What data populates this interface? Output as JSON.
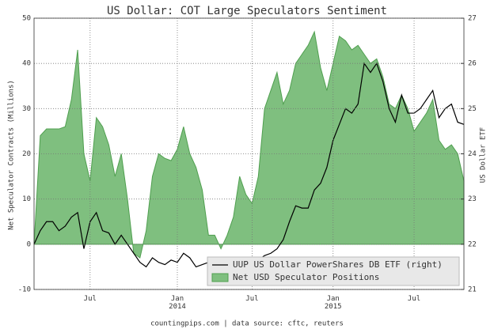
{
  "chart_data": {
    "type": "area_line",
    "title": "US Dollar: COT Large Speculators Sentiment",
    "ylabel": "Net Speculator Contracts (Millions)",
    "y2label": "US Dollar ETF",
    "footer": "countingpips.com | data source: cftc, reuters",
    "categories": [
      null,
      null,
      null,
      null,
      null,
      null,
      null,
      null,
      null,
      "Jul",
      null,
      null,
      null,
      null,
      null,
      null,
      null,
      null,
      null,
      null,
      null,
      null,
      null,
      "Jan\n2014",
      null,
      null,
      null,
      null,
      null,
      null,
      null,
      null,
      null,
      null,
      null,
      "Jul",
      null,
      null,
      null,
      null,
      null,
      null,
      null,
      null,
      null,
      null,
      null,
      null,
      "Jan\n2015",
      null,
      null,
      null,
      null,
      null,
      null,
      null,
      null,
      null,
      null,
      null,
      null,
      "Jul",
      null,
      null,
      null,
      null,
      null,
      null,
      null,
      null
    ],
    "series": [
      {
        "name": "Net USD Speculator Positions",
        "kind": "area",
        "color": "#7fbf7f",
        "edge": "#4f9f4f",
        "values": [
          0,
          24,
          25.5,
          25.5,
          25.5,
          26,
          32,
          43,
          20,
          14,
          28,
          26,
          22,
          15,
          20,
          10,
          -2,
          -3,
          3,
          15,
          20,
          19,
          18.5,
          21,
          26,
          20,
          17,
          12,
          2,
          2,
          -1,
          2,
          6,
          15,
          11,
          9,
          15,
          30,
          34,
          38,
          31,
          34,
          40,
          42,
          44,
          47,
          39,
          34,
          40,
          46,
          45,
          43,
          44,
          42,
          40,
          41,
          37,
          31,
          30,
          33,
          30,
          25,
          27,
          29,
          32,
          23,
          21,
          22,
          20,
          14
        ]
      },
      {
        "name": "UUP US Dollar PowerShares DB ETF (right)",
        "kind": "line",
        "axis": "y2",
        "color": "#000000",
        "values": [
          22.0,
          22.3,
          22.5,
          22.5,
          22.3,
          22.4,
          22.6,
          22.7,
          21.9,
          22.5,
          22.7,
          22.3,
          22.25,
          22.0,
          22.2,
          22.0,
          21.8,
          21.6,
          21.5,
          21.7,
          21.6,
          21.55,
          21.65,
          21.6,
          21.8,
          21.7,
          21.5,
          21.55,
          21.6,
          21.45,
          21.5,
          21.35,
          21.55,
          21.65,
          21.5,
          21.5,
          21.65,
          21.75,
          21.8,
          21.9,
          22.1,
          22.5,
          22.85,
          22.8,
          22.8,
          23.2,
          23.35,
          23.7,
          24.3,
          24.65,
          25.0,
          24.9,
          25.1,
          26.0,
          25.8,
          26.0,
          25.6,
          25.0,
          24.7,
          25.3,
          24.9,
          24.9,
          25.0,
          25.2,
          25.4,
          24.8,
          25.0,
          25.1,
          24.7,
          24.65
        ]
      }
    ],
    "ylim": [
      -10,
      50
    ],
    "yticks": [
      -10,
      0,
      10,
      20,
      30,
      40,
      50
    ],
    "y2lim": [
      21,
      27
    ],
    "y2ticks": [
      21,
      22,
      23,
      24,
      25,
      26,
      27
    ],
    "grid": true,
    "legend": "lower right"
  }
}
